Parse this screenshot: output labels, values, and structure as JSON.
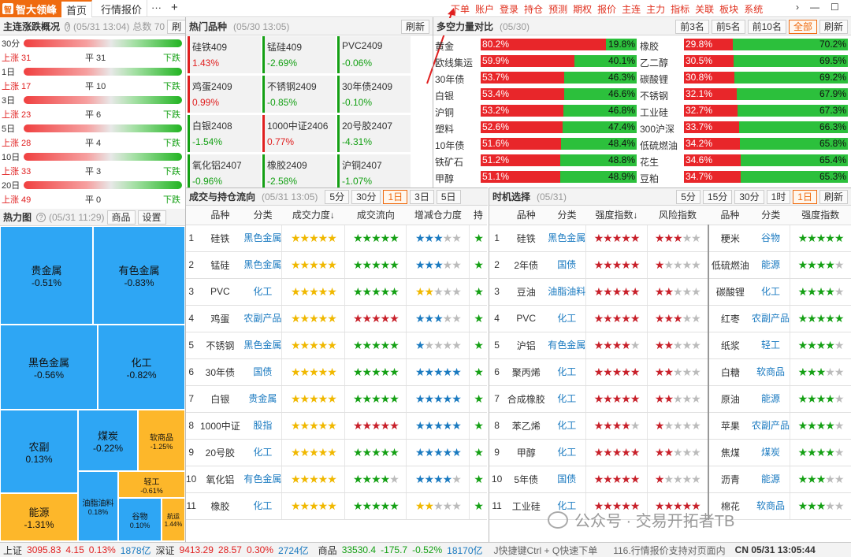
{
  "app": {
    "logo": "智大领峰",
    "tabs": [
      "首页",
      "行情报价"
    ],
    "more": "···",
    "add": "+"
  },
  "menu": [
    "下单",
    "账户",
    "登录",
    "持仓",
    "预测",
    "期权",
    "报价",
    "主连",
    "主力",
    "指标",
    "关联",
    "板块",
    "系统"
  ],
  "window": {
    "chevron": "›",
    "min": "—",
    "max": "☐",
    "close": "✕"
  },
  "zhangdie": {
    "title": "主连涨跌概况",
    "ts": "(05/31 13:04)",
    "total": "总数 70",
    "btn": "刷",
    "rows": [
      {
        "period": "30分",
        "up": "",
        "flat": "",
        "down": ""
      },
      {
        "period": "",
        "up": "上涨 31",
        "flat": "平 31",
        "down": "下跌"
      },
      {
        "period": "1日",
        "up": "",
        "flat": "",
        "down": ""
      },
      {
        "period": "",
        "up": "上涨 17",
        "flat": "平 10",
        "down": "下跌"
      },
      {
        "period": "3日",
        "up": "",
        "flat": "",
        "down": ""
      },
      {
        "period": "",
        "up": "上涨 23",
        "flat": "平 6",
        "down": "下跌"
      },
      {
        "period": "5日",
        "up": "",
        "flat": "",
        "down": ""
      },
      {
        "period": "",
        "up": "上涨 28",
        "flat": "平 4",
        "down": "下跌"
      },
      {
        "period": "10日",
        "up": "",
        "flat": "",
        "down": ""
      },
      {
        "period": "",
        "up": "上涨 33",
        "flat": "平 3",
        "down": "下跌"
      },
      {
        "period": "20日",
        "up": "",
        "flat": "",
        "down": ""
      },
      {
        "period": "",
        "up": "上涨 49",
        "flat": "平 0",
        "down": "下跌"
      }
    ]
  },
  "heatmap": {
    "title": "热力图",
    "ts": "(05/31 11:29)",
    "btn1": "商品",
    "btn2": "设置",
    "tiles": [
      [
        "贵金属",
        "-0.51%"
      ],
      [
        "有色金属",
        "-0.83%"
      ],
      [
        "黑色金属",
        "-0.56%"
      ],
      [
        "化工",
        "-0.82%"
      ],
      [
        "农副",
        "0.13%"
      ],
      [
        "煤炭",
        "-0.22%"
      ],
      [
        "软商品",
        "-1.25%"
      ],
      [
        "能源",
        "-1.31%"
      ],
      [
        "油脂油料",
        "0.18%"
      ],
      [
        "轻工",
        "-0.61%"
      ],
      [
        "谷物",
        "0.10%"
      ],
      [
        "航运",
        "1.44%"
      ]
    ]
  },
  "hot": {
    "title": "热门品种",
    "ts": "(05/30 13:05)",
    "btn": "刷新",
    "items": [
      [
        "硅铁409",
        "1.43%"
      ],
      [
        "锰硅409",
        "-2.69%"
      ],
      [
        "PVC2409",
        "-0.06%"
      ],
      [
        "鸡蛋2409",
        "0.99%"
      ],
      [
        "不锈钢2409",
        "-0.85%"
      ],
      [
        "30年债2409",
        "-0.10%"
      ],
      [
        "白银2408",
        "-1.54%"
      ],
      [
        "1000中证2406",
        "0.77%"
      ],
      [
        "20号胶2407",
        "-4.31%"
      ],
      [
        "氧化铝2407",
        "-0.96%"
      ],
      [
        "橡胶2409",
        "-2.58%"
      ],
      [
        "沪铜2407",
        "-1.07%"
      ]
    ]
  },
  "force": {
    "title": "多空力量对比",
    "ts": "(05/30)",
    "btns": [
      "前3名",
      "前5名",
      "前10名",
      "全部",
      "刷新"
    ],
    "left": [
      [
        "黄金",
        80.2,
        "80.2%",
        "19.8%"
      ],
      [
        "欧线集运",
        59.9,
        "59.9%",
        "40.1%"
      ],
      [
        "30年债",
        53.7,
        "53.7%",
        "46.3%"
      ],
      [
        "白银",
        53.4,
        "53.4%",
        "46.6%"
      ],
      [
        "沪铜",
        53.2,
        "53.2%",
        "46.8%"
      ],
      [
        "塑料",
        52.6,
        "52.6%",
        "47.4%"
      ],
      [
        "10年债",
        51.6,
        "51.6%",
        "48.4%"
      ],
      [
        "铁矿石",
        51.2,
        "51.2%",
        "48.8%"
      ],
      [
        "甲醇",
        51.1,
        "51.1%",
        "48.9%"
      ]
    ],
    "right": [
      [
        "橡胶",
        29.8,
        "29.8%",
        "70.2%"
      ],
      [
        "乙二醇",
        30.5,
        "30.5%",
        "69.5%"
      ],
      [
        "碳酸锂",
        30.8,
        "30.8%",
        "69.2%"
      ],
      [
        "不锈钢",
        32.1,
        "32.1%",
        "67.9%"
      ],
      [
        "工业硅",
        32.7,
        "32.7%",
        "67.3%"
      ],
      [
        "300沪深",
        33.7,
        "33.7%",
        "66.3%"
      ],
      [
        "低硫燃油",
        34.2,
        "34.2%",
        "65.8%"
      ],
      [
        "花生",
        34.6,
        "34.6%",
        "65.4%"
      ],
      [
        "豆粕",
        34.7,
        "34.7%",
        "65.3%"
      ]
    ]
  },
  "flow": {
    "title": "成交与持仓流向",
    "ts": "(05/31 13:05)",
    "btns": [
      "5分",
      "30分",
      "1日",
      "3日",
      "5日"
    ],
    "headers": [
      "品种",
      "分类",
      "成交力度↓",
      "成交流向",
      "增减仓力度",
      "持"
    ],
    "rows": [
      [
        "1",
        "硅铁",
        "黑色金属"
      ],
      [
        "2",
        "锰硅",
        "黑色金属"
      ],
      [
        "3",
        "PVC",
        "化工"
      ],
      [
        "4",
        "鸡蛋",
        "农副产品"
      ],
      [
        "5",
        "不锈钢",
        "黑色金属"
      ],
      [
        "6",
        "30年债",
        "国债"
      ],
      [
        "7",
        "白银",
        "贵金属"
      ],
      [
        "8",
        "1000中证",
        "股指"
      ],
      [
        "9",
        "20号胶",
        "化工"
      ],
      [
        "10",
        "氧化铝",
        "有色金属"
      ],
      [
        "11",
        "橡胶",
        "化工"
      ]
    ]
  },
  "timing": {
    "title": "时机选择",
    "ts": "(05/31)",
    "btns": [
      "5分",
      "15分",
      "30分",
      "1时",
      "1日",
      "刷新"
    ],
    "headers": [
      "品种",
      "分类",
      "强度指数↓",
      "风险指数",
      "品种",
      "分类",
      "强度指数"
    ],
    "rows": [
      [
        "1",
        "硅铁",
        "黑色金属",
        "粳米",
        "谷物"
      ],
      [
        "2",
        "2年债",
        "国债",
        "低硫燃油",
        "能源"
      ],
      [
        "3",
        "豆油",
        "油脂油料",
        "碳酸锂",
        "化工"
      ],
      [
        "4",
        "PVC",
        "化工",
        "红枣",
        "农副产品"
      ],
      [
        "5",
        "沪铝",
        "有色金属",
        "纸浆",
        "轻工"
      ],
      [
        "6",
        "聚丙烯",
        "化工",
        "白糖",
        "软商品"
      ],
      [
        "7",
        "合成橡胶",
        "化工",
        "原油",
        "能源"
      ],
      [
        "8",
        "苯乙烯",
        "化工",
        "苹果",
        "农副产品"
      ],
      [
        "9",
        "甲醇",
        "化工",
        "焦煤",
        "煤炭"
      ],
      [
        "10",
        "5年债",
        "国债",
        "沥青",
        "能源"
      ],
      [
        "11",
        "工业硅",
        "化工",
        "棉花",
        "软商品"
      ]
    ]
  },
  "status": {
    "sh": "上证",
    "sh_v": "3095.83",
    "sh_c": "4.15",
    "sh_p": "0.13%",
    "sh_a": "1878亿",
    "sz": "深证",
    "sz_v": "9413.29",
    "sz_c": "28.57",
    "sz_p": "0.30%",
    "sz_a": "2724亿",
    "sp": "商品",
    "sp_v": "33530.4",
    "sp_c": "-175.7",
    "sp_p": "-0.52%",
    "sp_a": "18170亿",
    "tip1": "J快捷键Ctrl + Q快速下单",
    "tip2": "116.行情报价支持对页面内",
    "clock": "CN 05/31 13:05:44"
  },
  "watermark": "公众号 · 交易开拓者TB"
}
